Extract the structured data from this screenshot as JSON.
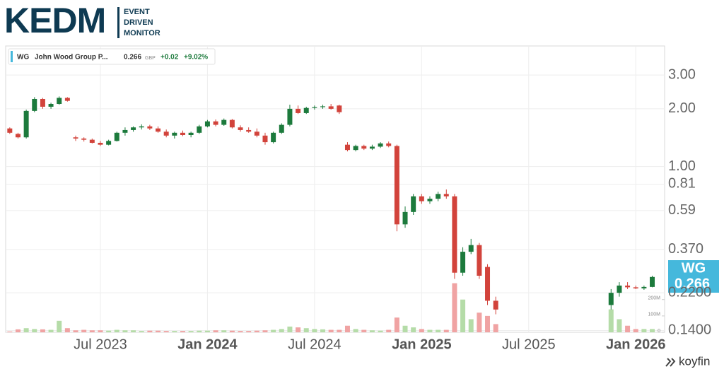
{
  "header": {
    "logo": "KEDM",
    "tagline": [
      "EVENT",
      "DRIVEN",
      "MONITOR"
    ]
  },
  "legend": {
    "symbol": "WG",
    "name": "John Wood Group P...",
    "price": "0.266",
    "currency": "GBP",
    "change": "+0.02",
    "change_pct": "+9.02%"
  },
  "price_tag": {
    "symbol": "WG",
    "price": "0.266"
  },
  "footer": {
    "brand": "koyfin"
  },
  "chart_data": {
    "type": "candlestick",
    "log_scale": true,
    "grid": true,
    "up_color": "#1c7a3c",
    "down_color": "#d2433b",
    "volume_up_color": "#b5dca8",
    "volume_down_color": "#f0a3a3",
    "categories": [
      null,
      null,
      null,
      null,
      null,
      null,
      null,
      null,
      null,
      null,
      null,
      "Jul 2023",
      null,
      null,
      null,
      null,
      null,
      null,
      null,
      null,
      null,
      null,
      null,
      null,
      "Jan 2024",
      null,
      null,
      null,
      null,
      null,
      null,
      null,
      null,
      null,
      null,
      null,
      null,
      "Jul 2024",
      null,
      null,
      null,
      null,
      null,
      null,
      null,
      null,
      null,
      null,
      null,
      null,
      "Jan 2025",
      null,
      null,
      null,
      null,
      null,
      null,
      null,
      null,
      null,
      null,
      null,
      null,
      "Jul 2025",
      null,
      null,
      null,
      null,
      null,
      null,
      null,
      null,
      null,
      null,
      null,
      null,
      "Jan 2026",
      null,
      null,
      null
    ],
    "open": [
      1.58,
      1.48,
      1.42,
      1.95,
      2.25,
      2.05,
      2.12,
      2.28,
      1.42,
      1.4,
      1.38,
      1.33,
      1.3,
      1.36,
      1.5,
      1.55,
      1.6,
      1.62,
      1.58,
      1.52,
      1.45,
      1.5,
      1.46,
      1.5,
      1.62,
      1.72,
      1.65,
      1.75,
      1.6,
      1.55,
      1.52,
      1.45,
      1.34,
      1.5,
      1.65,
      2.0,
      1.9,
      2.02,
      2.04,
      2.06,
      2.08,
      1.3,
      1.22,
      1.28,
      1.24,
      1.27,
      1.32,
      1.28,
      0.5,
      0.58,
      0.7,
      0.66,
      0.68,
      0.72,
      0.7,
      0.28,
      0.36,
      0.39,
      0.3,
      0.2,
      null,
      null,
      null,
      null,
      null,
      null,
      null,
      null,
      null,
      null,
      null,
      null,
      null,
      0.19,
      0.22,
      0.24,
      0.235,
      0.232,
      0.236,
      null
    ],
    "high": [
      1.6,
      1.5,
      1.98,
      2.3,
      2.28,
      2.15,
      2.32,
      2.3,
      1.45,
      1.42,
      1.4,
      1.36,
      1.38,
      1.52,
      1.6,
      1.62,
      1.66,
      1.65,
      1.62,
      1.56,
      1.52,
      1.54,
      1.52,
      1.65,
      1.75,
      1.76,
      1.78,
      1.77,
      1.64,
      1.6,
      1.58,
      1.5,
      1.52,
      1.68,
      2.1,
      2.08,
      2.05,
      2.08,
      2.1,
      2.12,
      2.1,
      1.34,
      1.3,
      1.3,
      1.3,
      1.34,
      1.35,
      1.3,
      0.62,
      0.72,
      0.72,
      0.7,
      0.74,
      0.76,
      0.72,
      0.38,
      0.42,
      0.4,
      0.31,
      0.21,
      null,
      null,
      null,
      null,
      null,
      null,
      null,
      null,
      null,
      null,
      null,
      null,
      null,
      0.23,
      0.25,
      0.25,
      0.24,
      0.24,
      0.27,
      null
    ],
    "low": [
      1.48,
      1.4,
      1.4,
      1.92,
      2.0,
      2.0,
      2.1,
      2.18,
      1.36,
      1.35,
      1.32,
      1.28,
      1.29,
      1.35,
      1.45,
      1.52,
      1.56,
      1.55,
      1.5,
      1.42,
      1.4,
      1.44,
      1.42,
      1.48,
      1.6,
      1.62,
      1.63,
      1.58,
      1.52,
      1.5,
      1.42,
      1.3,
      1.32,
      1.48,
      1.62,
      1.88,
      1.88,
      1.98,
      2.0,
      1.98,
      1.88,
      1.2,
      1.2,
      1.22,
      1.22,
      1.25,
      1.26,
      0.46,
      0.48,
      0.56,
      0.64,
      0.64,
      0.66,
      0.68,
      0.26,
      0.27,
      0.35,
      0.26,
      0.19,
      0.17,
      null,
      null,
      null,
      null,
      null,
      null,
      null,
      null,
      null,
      null,
      null,
      null,
      null,
      0.18,
      0.21,
      0.23,
      0.23,
      0.228,
      0.235,
      null
    ],
    "close": [
      1.5,
      1.42,
      1.95,
      2.25,
      2.05,
      2.12,
      2.28,
      2.2,
      1.4,
      1.38,
      1.33,
      1.3,
      1.36,
      1.5,
      1.55,
      1.6,
      1.62,
      1.58,
      1.52,
      1.45,
      1.5,
      1.46,
      1.5,
      1.62,
      1.72,
      1.65,
      1.75,
      1.6,
      1.55,
      1.52,
      1.45,
      1.34,
      1.5,
      1.65,
      2.0,
      1.9,
      2.02,
      2.04,
      2.06,
      2.0,
      1.92,
      1.22,
      1.28,
      1.24,
      1.27,
      1.32,
      1.28,
      0.5,
      0.58,
      0.7,
      0.66,
      0.68,
      0.72,
      0.7,
      0.28,
      0.36,
      0.39,
      0.27,
      0.2,
      0.18,
      null,
      null,
      null,
      null,
      null,
      null,
      null,
      null,
      null,
      null,
      null,
      null,
      null,
      0.22,
      0.24,
      0.235,
      0.232,
      0.236,
      0.266,
      null
    ],
    "volume": [
      5000000,
      18000000,
      25000000,
      20000000,
      18000000,
      15000000,
      70000000,
      25000000,
      12000000,
      15000000,
      12000000,
      12000000,
      10000000,
      15000000,
      12000000,
      12000000,
      8000000,
      10000000,
      10000000,
      8000000,
      8000000,
      8000000,
      8000000,
      10000000,
      10000000,
      12000000,
      12000000,
      10000000,
      8000000,
      8000000,
      10000000,
      12000000,
      15000000,
      20000000,
      35000000,
      30000000,
      25000000,
      20000000,
      18000000,
      15000000,
      15000000,
      40000000,
      20000000,
      15000000,
      12000000,
      10000000,
      15000000,
      90000000,
      40000000,
      30000000,
      20000000,
      15000000,
      15000000,
      15000000,
      300000000,
      200000000,
      80000000,
      120000000,
      100000000,
      50000000,
      null,
      null,
      null,
      null,
      null,
      null,
      null,
      null,
      null,
      null,
      null,
      null,
      null,
      140000000,
      80000000,
      40000000,
      20000000,
      20000000,
      20000000,
      null
    ],
    "ylim": [
      0.137,
      4.25
    ],
    "yticks": [
      {
        "value": 3,
        "label": "3.00"
      },
      {
        "value": 2,
        "label": "2.00"
      },
      {
        "value": 1,
        "label": "1.00"
      },
      0.81,
      0.59,
      {
        "value": 0.37,
        "label": "0.370"
      },
      {
        "value": 0.22,
        "label": "0.2200"
      },
      {
        "value": 0.14,
        "label": "0.1400"
      }
    ],
    "y2lim": [
      0,
      1750000000
    ],
    "y2ticks": [
      0,
      {
        "value": 100000000,
        "label": "100M"
      },
      {
        "value": 200000000,
        "label": "200M"
      }
    ]
  }
}
